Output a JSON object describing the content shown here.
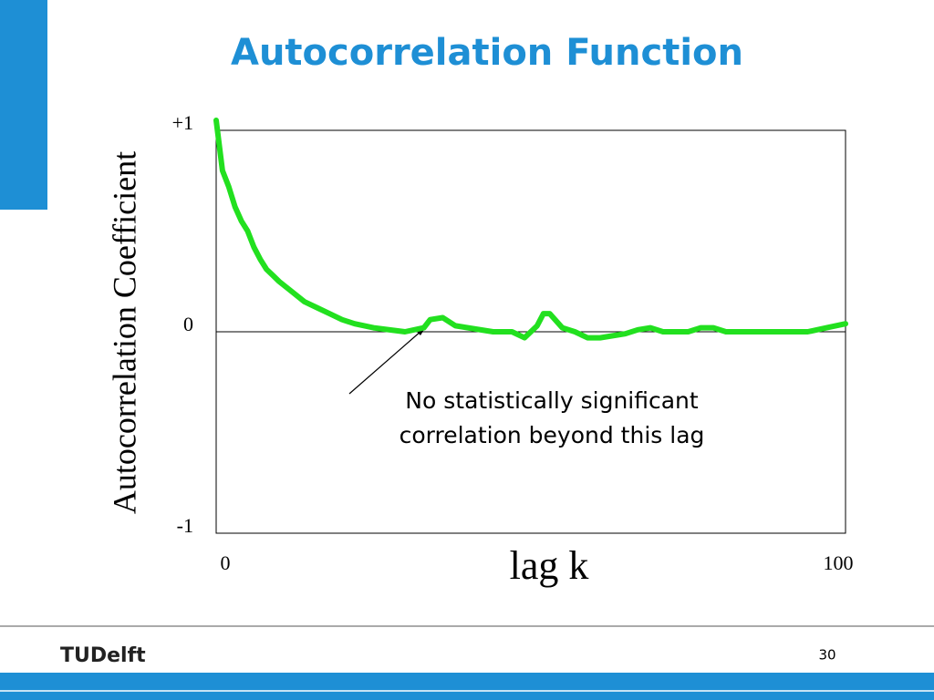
{
  "chart_data": {
    "type": "line",
    "title": "Autocorrelation Function",
    "y_label": "Autocorrelation Coefficient",
    "x_label": "lag k",
    "annotation": [
      "No statistically significant",
      "correlation beyond this lag"
    ],
    "x": [
      0,
      1,
      2,
      3,
      4,
      5,
      6,
      7,
      8,
      9,
      10,
      12,
      14,
      16,
      18,
      20,
      22,
      25,
      30,
      33,
      34,
      36,
      38,
      40,
      44,
      47,
      49,
      51,
      52,
      53,
      55,
      57,
      59,
      61,
      63,
      65,
      67,
      69,
      71,
      75,
      77,
      79,
      81,
      85,
      90,
      94,
      97,
      100
    ],
    "series": [
      {
        "color": "#22e01f",
        "values": [
          1.05,
          0.8,
          0.72,
          0.62,
          0.55,
          0.5,
          0.42,
          0.36,
          0.31,
          0.28,
          0.25,
          0.2,
          0.15,
          0.12,
          0.09,
          0.06,
          0.04,
          0.02,
          0.0,
          0.02,
          0.06,
          0.07,
          0.03,
          0.02,
          0.0,
          0.0,
          -0.03,
          0.03,
          0.09,
          0.09,
          0.02,
          0.0,
          -0.03,
          -0.03,
          -0.02,
          -0.01,
          0.01,
          0.02,
          0.0,
          0.0,
          0.02,
          0.02,
          0.0,
          0.0,
          0.0,
          0.0,
          0.02,
          0.04
        ]
      }
    ],
    "xlim": [
      0,
      100
    ],
    "xticks": [
      0,
      100
    ],
    "ylim": [
      -1,
      1
    ],
    "yticks": [
      {
        "value": -1,
        "label": "-1"
      },
      0,
      {
        "value": 1,
        "label": "+1"
      }
    ]
  },
  "footer": {
    "logo": "TUDelft",
    "page_number": "30"
  }
}
